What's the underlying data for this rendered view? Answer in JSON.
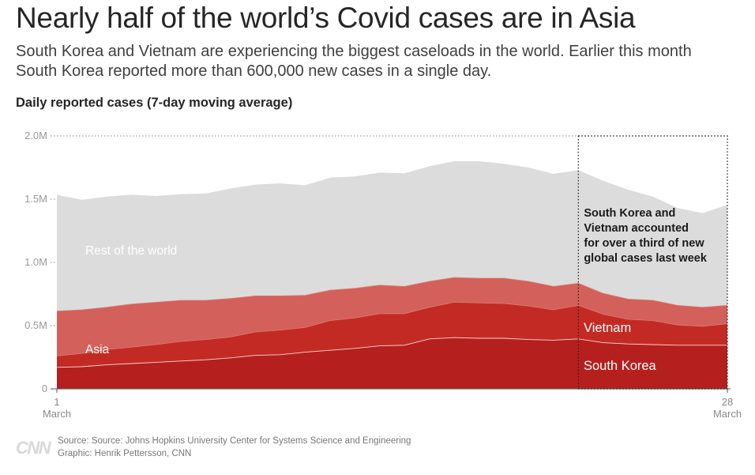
{
  "headline": "Nearly half of the world’s Covid cases are in Asia",
  "subhead": "South Korea and Vietnam are experiencing the biggest caseloads in the world. Earlier this month South Korea reported more than 600,000 new cases in a single day.",
  "footer": {
    "logo": "CNN",
    "source": "Source: Source: Johns Hopkins University Center for Systems Science and Engineering",
    "credit": "Graphic: Henrik Pettersson, CNN"
  },
  "chart_data": {
    "type": "area",
    "stacked": true,
    "title": "Daily reported cases (7-day moving average)",
    "x": [
      1,
      2,
      3,
      4,
      5,
      6,
      7,
      8,
      9,
      10,
      11,
      12,
      13,
      14,
      15,
      16,
      17,
      18,
      19,
      20,
      21,
      22,
      23,
      24,
      25,
      26,
      27,
      28
    ],
    "x_ticks": [
      {
        "x": 1,
        "label": "1",
        "sublabel": "March"
      },
      {
        "x": 28,
        "label": "28",
        "sublabel": "March"
      }
    ],
    "ylim": [
      0,
      2000000
    ],
    "y_ticks": [
      {
        "value": 0,
        "label": "0"
      },
      {
        "value": 500000,
        "label": "0.5M"
      },
      {
        "value": 1000000,
        "label": "1.0M"
      },
      {
        "value": 1500000,
        "label": "1.5M"
      },
      {
        "value": 2000000,
        "label": "2.0M"
      }
    ],
    "series": [
      {
        "name": "South Korea",
        "color": "#b5201e",
        "values": [
          170000,
          175000,
          190000,
          200000,
          210000,
          220000,
          230000,
          245000,
          265000,
          270000,
          290000,
          305000,
          320000,
          340000,
          345000,
          395000,
          405000,
          400000,
          400000,
          390000,
          385000,
          395000,
          365000,
          355000,
          350000,
          345000,
          345000,
          345000
        ]
      },
      {
        "name": "Vietnam",
        "color": "#c42a24",
        "values": [
          90000,
          105000,
          120000,
          130000,
          140000,
          155000,
          160000,
          165000,
          185000,
          195000,
          195000,
          235000,
          240000,
          255000,
          250000,
          250000,
          280000,
          280000,
          275000,
          265000,
          240000,
          265000,
          225000,
          195000,
          190000,
          160000,
          150000,
          170000
        ]
      },
      {
        "name": "Other Asia",
        "color": "#d3605a",
        "values": [
          355000,
          345000,
          335000,
          340000,
          335000,
          325000,
          310000,
          305000,
          285000,
          270000,
          255000,
          240000,
          235000,
          225000,
          215000,
          205000,
          195000,
          195000,
          200000,
          195000,
          185000,
          175000,
          165000,
          160000,
          160000,
          155000,
          150000,
          145000
        ]
      },
      {
        "name": "Rest of the world",
        "color": "#dcdcdc",
        "values": [
          920000,
          870000,
          875000,
          865000,
          840000,
          840000,
          845000,
          870000,
          880000,
          890000,
          870000,
          890000,
          885000,
          890000,
          895000,
          910000,
          920000,
          925000,
          905000,
          900000,
          890000,
          895000,
          890000,
          865000,
          820000,
          770000,
          745000,
          795000
        ]
      }
    ],
    "labels": [
      {
        "text": "Rest of the world",
        "color": "#ffffff"
      },
      {
        "text": "Asia",
        "color": "#ffffff"
      },
      {
        "text": "Vietnam",
        "color": "#ffffff"
      },
      {
        "text": "South Korea",
        "color": "#ffffff"
      }
    ],
    "annotation": {
      "lines": [
        "South Korea and",
        "Vietnam accounted",
        "for over a third of new",
        "global cases last week"
      ],
      "x_range": [
        22,
        28
      ]
    }
  }
}
